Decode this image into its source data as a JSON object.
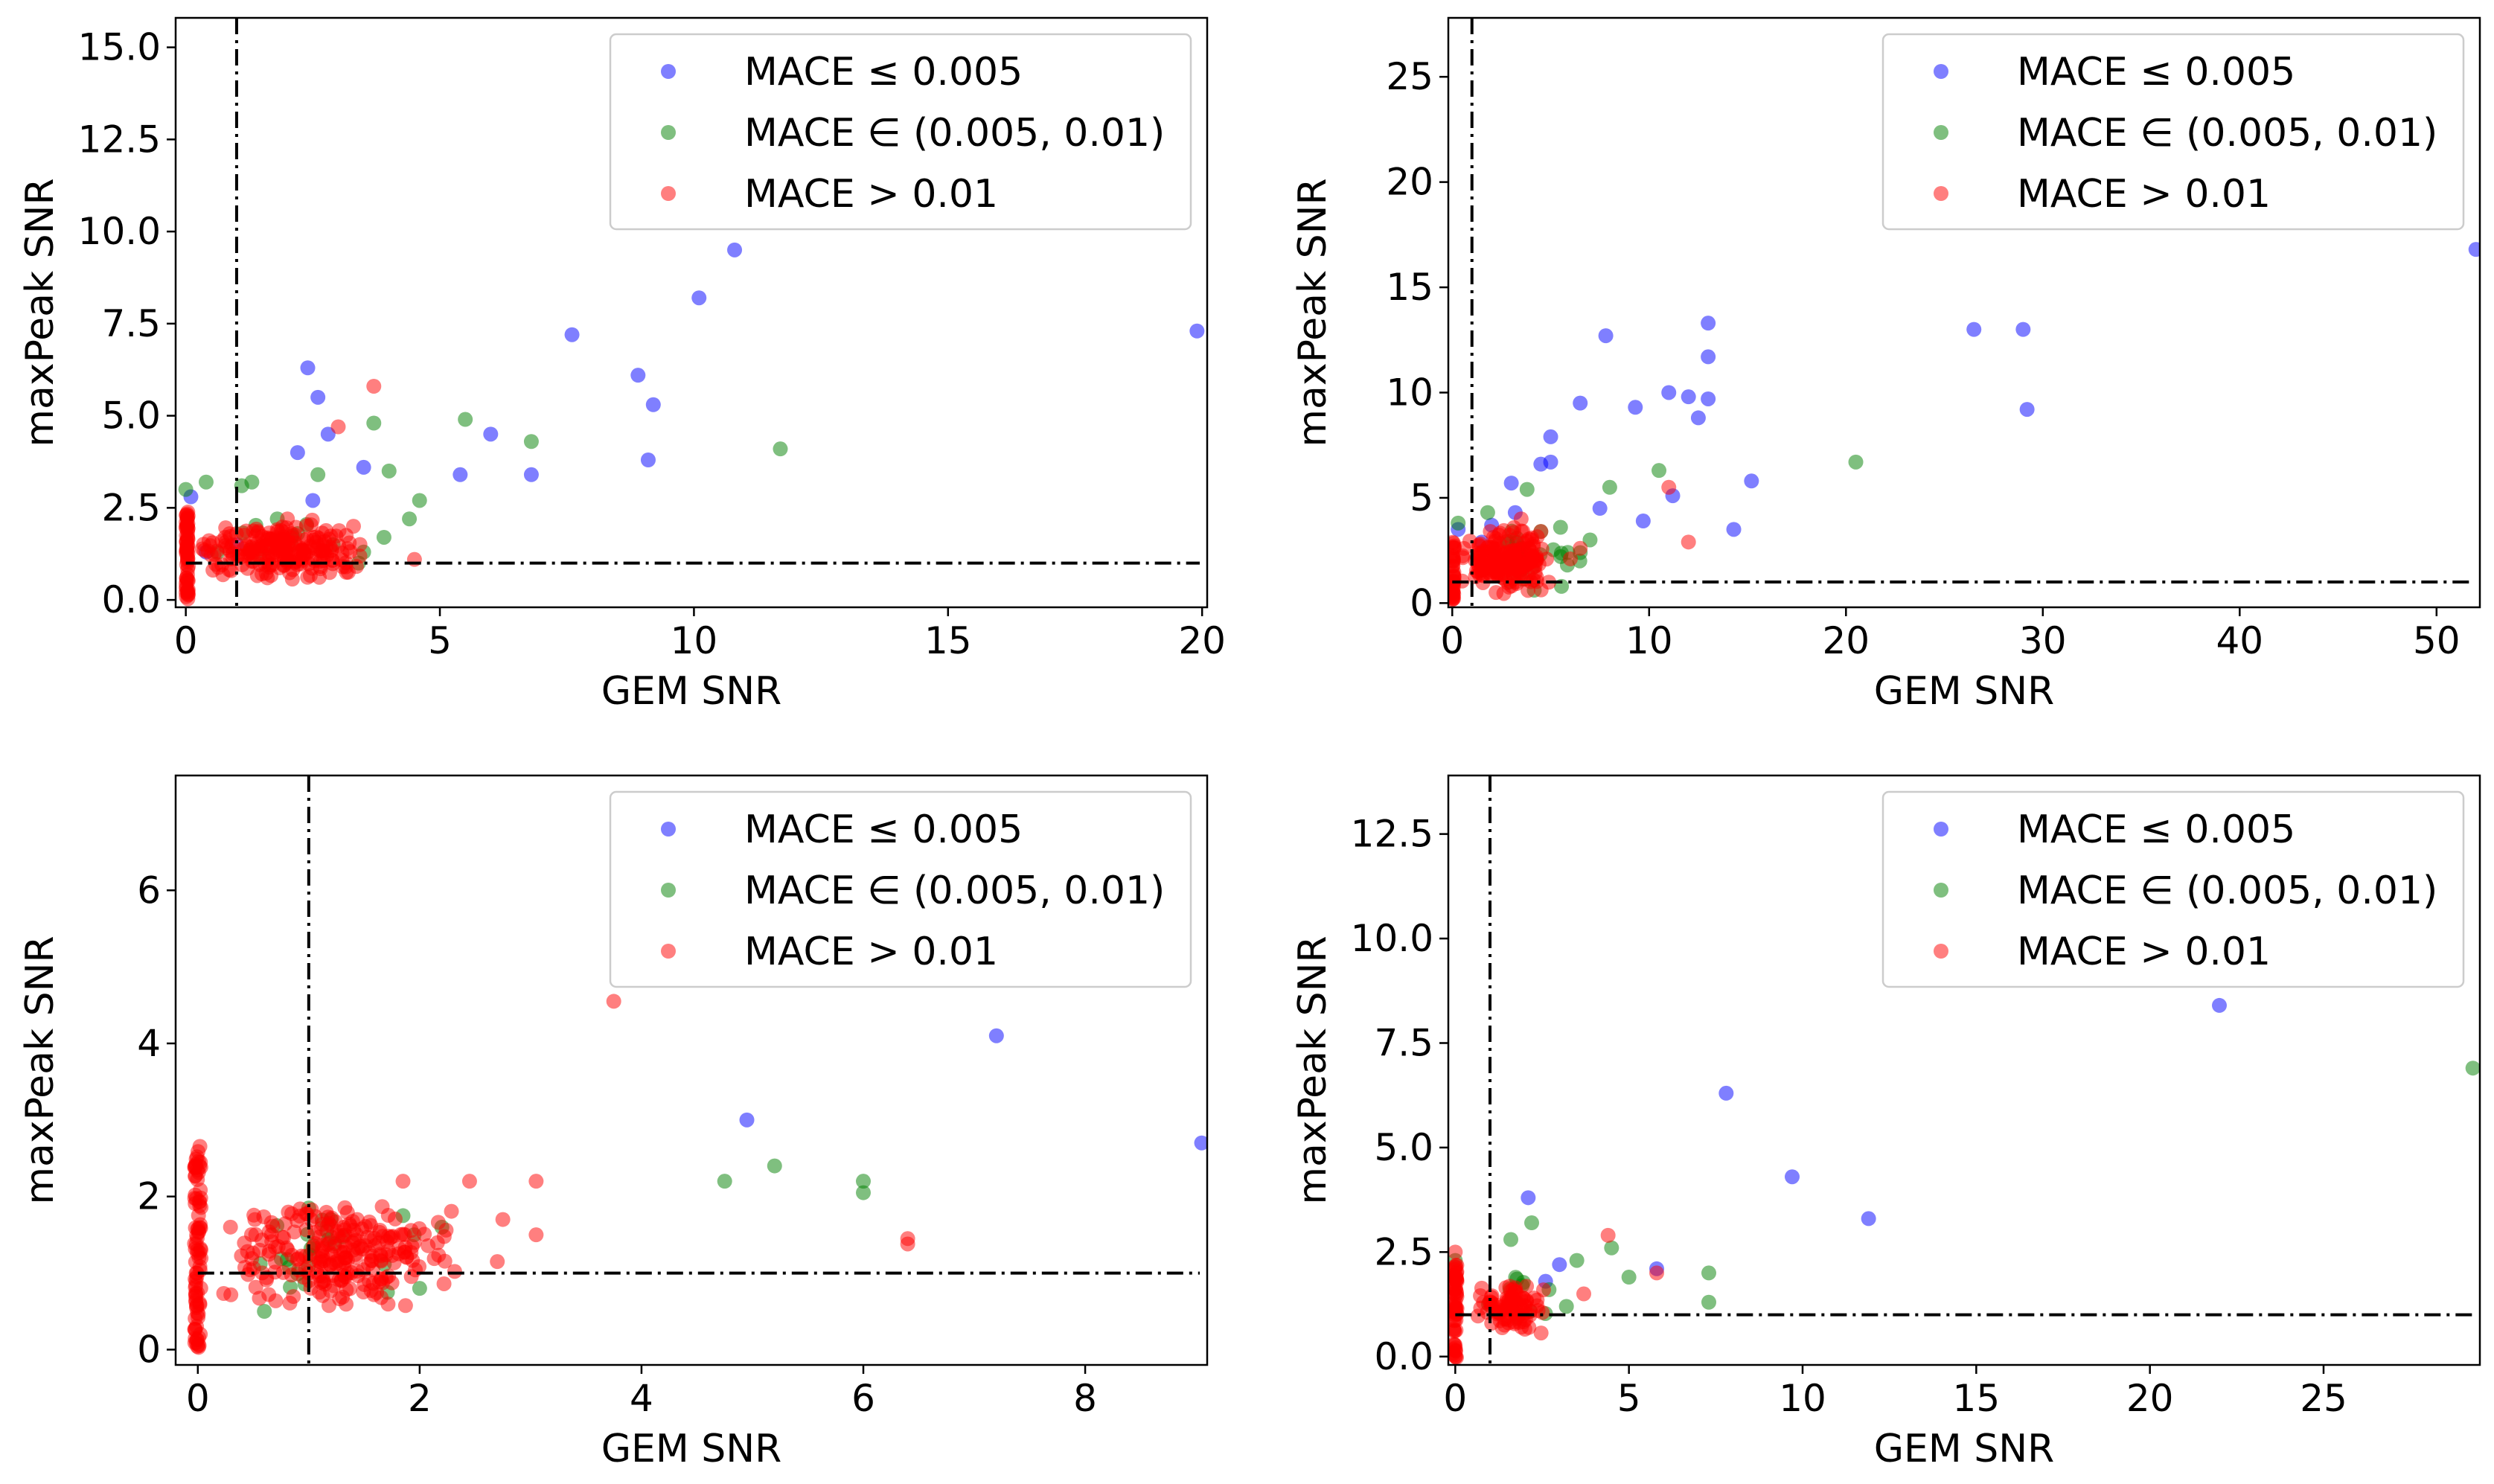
{
  "figure": {
    "legend_entries": [
      {
        "label": "MACE ≤ 0.005",
        "color": "#0000ff"
      },
      {
        "label": "MACE ∈ (0.005, 0.01)",
        "color": "#008000"
      },
      {
        "label": "MACE > 0.01",
        "color": "#ff0000"
      }
    ],
    "legend_placement": "upper right",
    "marker_alpha": 0.5
  },
  "chart_data": [
    {
      "type": "scatter",
      "xlabel": "GEM SNR",
      "ylabel": "maxPeak SNR",
      "xlim": [
        -0.2,
        20.1
      ],
      "ylim": [
        -0.2,
        15.8
      ],
      "xticks": [
        0,
        5,
        10,
        15,
        20
      ],
      "xtick_labels": [
        "0",
        "5",
        "10",
        "15",
        "20"
      ],
      "yticks": [
        0.0,
        2.5,
        5.0,
        7.5,
        10.0,
        12.5,
        15.0
      ],
      "ytick_labels": [
        "0.0",
        "2.5",
        "5.0",
        "7.5",
        "10.0",
        "12.5",
        "15.0"
      ],
      "reference_lines": {
        "x": 1,
        "y": 1
      },
      "grid": false,
      "series": [
        {
          "name": "MACE ≤ 0.005",
          "color": "#0000ff",
          "x": [
            10.8,
            10.1,
            7.6,
            8.9,
            9.1,
            9.2,
            19.9,
            6.0,
            6.8,
            5.4,
            2.4,
            2.6,
            2.2,
            2.8,
            3.5,
            2.5,
            0.1,
            0.4,
            1.0
          ],
          "y": [
            9.5,
            8.2,
            7.2,
            6.1,
            3.8,
            5.3,
            7.3,
            4.5,
            3.4,
            3.4,
            6.3,
            5.5,
            4.0,
            4.5,
            3.6,
            2.7,
            2.8,
            1.3,
            1.5
          ]
        },
        {
          "name": "MACE ∈ (0.005, 0.01)",
          "color": "#008000",
          "x": [
            0.0,
            0.4,
            1.1,
            1.3,
            2.6,
            3.7,
            4.0,
            4.6,
            5.5,
            6.8,
            11.7,
            3.4,
            2.9,
            1.8,
            2.2,
            3.5,
            4.4,
            3.9,
            1.6
          ],
          "y": [
            3.0,
            3.2,
            3.1,
            3.2,
            3.4,
            4.8,
            3.5,
            2.7,
            4.9,
            4.3,
            4.1,
            1.0,
            1.5,
            2.2,
            1.8,
            1.3,
            2.2,
            1.7,
            1.4
          ],
          "jitter_cloud": {
            "count": 8,
            "x": [
              0.5,
              3.0
            ],
            "y": [
              0.8,
              2.2
            ]
          }
        },
        {
          "name": "MACE > 0.01",
          "color": "#ff0000",
          "x": [
            3.7,
            3.0,
            3.3,
            2.0,
            4.5
          ],
          "y": [
            5.8,
            4.7,
            2.0,
            2.2,
            1.1
          ],
          "column_cluster": {
            "count": 60,
            "x": [
              0.0,
              0.05
            ],
            "y": [
              0.0,
              2.4
            ]
          },
          "jitter_cloud": {
            "count": 220,
            "x": [
              0.2,
              3.6
            ],
            "y": [
              0.5,
              2.2
            ]
          }
        }
      ]
    },
    {
      "type": "scatter",
      "xlabel": "GEM SNR",
      "ylabel": "maxPeak SNR",
      "xlim": [
        -0.2,
        52.2
      ],
      "ylim": [
        -0.2,
        27.8
      ],
      "xticks": [
        0,
        10,
        20,
        30,
        40,
        50
      ],
      "xtick_labels": [
        "0",
        "10",
        "20",
        "30",
        "40",
        "50"
      ],
      "yticks": [
        0,
        5,
        10,
        15,
        20,
        25
      ],
      "ytick_labels": [
        "0",
        "5",
        "10",
        "15",
        "20",
        "25"
      ],
      "reference_lines": {
        "x": 1,
        "y": 1
      },
      "grid": false,
      "series": [
        {
          "name": "MACE ≤ 0.005",
          "color": "#0000ff",
          "x": [
            52,
            29,
            26.5,
            29.2,
            13,
            13,
            13,
            12,
            12.5,
            11,
            7.8,
            9.3,
            6.5,
            5,
            4.5,
            3,
            15.2,
            14.3,
            11.2,
            9.7,
            7.5,
            5.0,
            3.2,
            2.0,
            1.5,
            0.3
          ],
          "y": [
            16.8,
            13.0,
            13.0,
            9.2,
            13.3,
            11.7,
            9.7,
            9.8,
            8.8,
            10.0,
            12.7,
            9.3,
            9.5,
            7.9,
            6.6,
            5.7,
            5.8,
            3.5,
            5.1,
            3.9,
            4.5,
            6.7,
            4.3,
            3.7,
            2.9,
            3.5
          ]
        },
        {
          "name": "MACE ∈ (0.005, 0.01)",
          "color": "#008000",
          "x": [
            20.5,
            10.5,
            8,
            7,
            5.5,
            3.8,
            1.8,
            0.3,
            4.5,
            6.5,
            2.8,
            3.5
          ],
          "y": [
            6.7,
            6.3,
            5.5,
            3.0,
            3.6,
            5.4,
            4.3,
            3.8,
            3.4,
            2.4,
            1.8,
            2.6
          ],
          "jitter_cloud": {
            "count": 25,
            "x": [
              0.5,
              7.5
            ],
            "y": [
              0.5,
              4.0
            ]
          }
        },
        {
          "name": "MACE > 0.01",
          "color": "#ff0000",
          "x": [
            12,
            11,
            6.5,
            4.5,
            3.5,
            6.0
          ],
          "y": [
            2.9,
            5.5,
            2.6,
            3.4,
            4.0,
            2.1
          ],
          "column_cluster": {
            "count": 40,
            "x": [
              0.0,
              0.1
            ],
            "y": [
              0.0,
              3.0
            ]
          },
          "jitter_cloud": {
            "count": 180,
            "x": [
              0.3,
              5.0
            ],
            "y": [
              0.2,
              3.8
            ]
          }
        }
      ]
    },
    {
      "type": "scatter",
      "xlabel": "GEM SNR",
      "ylabel": "maxPeak SNR",
      "xlim": [
        -0.2,
        9.1
      ],
      "ylim": [
        -0.2,
        7.5
      ],
      "xticks": [
        0,
        2,
        4,
        6,
        8
      ],
      "xtick_labels": [
        "0",
        "2",
        "4",
        "6",
        "8"
      ],
      "yticks": [
        0,
        2,
        4,
        6
      ],
      "ytick_labels": [
        "0",
        "2",
        "4",
        "6"
      ],
      "reference_lines": {
        "x": 1,
        "y": 1
      },
      "grid": false,
      "series": [
        {
          "name": "MACE ≤ 0.005",
          "color": "#0000ff",
          "x": [
            7.2,
            9.05,
            4.95
          ],
          "y": [
            4.1,
            2.7,
            3.0
          ]
        },
        {
          "name": "MACE ∈ (0.005, 0.01)",
          "color": "#008000",
          "x": [
            4.75,
            5.2,
            6.0,
            6.0,
            1.85,
            1.95,
            2.0,
            2.2,
            1.2,
            1.0,
            0.6
          ],
          "y": [
            2.2,
            2.4,
            2.2,
            2.05,
            1.75,
            1.5,
            0.8,
            1.6,
            1.7,
            1.85,
            0.5
          ],
          "jitter_cloud": {
            "count": 20,
            "x": [
              0.4,
              1.8
            ],
            "y": [
              0.6,
              1.8
            ]
          }
        },
        {
          "name": "MACE > 0.01",
          "color": "#ff0000",
          "x": [
            3.75,
            6.4,
            6.4,
            3.05,
            3.05,
            2.45,
            2.75,
            2.7,
            1.85,
            1.5
          ],
          "y": [
            4.55,
            1.45,
            1.38,
            2.2,
            1.5,
            2.2,
            1.7,
            1.15,
            2.2,
            0.85
          ],
          "column_cluster": {
            "count": 90,
            "x": [
              -0.03,
              0.03
            ],
            "y": [
              0.0,
              2.7
            ]
          },
          "jitter_cloud": {
            "count": 250,
            "x": [
              0.2,
              2.4
            ],
            "y": [
              0.5,
              2.0
            ]
          }
        }
      ]
    },
    {
      "type": "scatter",
      "xlabel": "GEM SNR",
      "ylabel": "maxPeak SNR",
      "xlim": [
        -0.2,
        29.5
      ],
      "ylim": [
        -0.2,
        13.9
      ],
      "xticks": [
        0,
        5,
        10,
        15,
        20,
        25
      ],
      "xtick_labels": [
        "0",
        "5",
        "10",
        "15",
        "20",
        "25"
      ],
      "yticks": [
        0.0,
        2.5,
        5.0,
        7.5,
        10.0,
        12.5
      ],
      "ytick_labels": [
        "0.0",
        "2.5",
        "5.0",
        "7.5",
        "10.0",
        "12.5"
      ],
      "reference_lines": {
        "x": 1,
        "y": 1
      },
      "grid": false,
      "series": [
        {
          "name": "MACE ≤ 0.005",
          "color": "#0000ff",
          "x": [
            22,
            7.8,
            9.7,
            11.9,
            2.1,
            5.8,
            3.0,
            2.6
          ],
          "y": [
            8.4,
            6.3,
            4.3,
            3.3,
            3.8,
            2.1,
            2.2,
            1.8
          ]
        },
        {
          "name": "MACE ∈ (0.005, 0.01)",
          "color": "#008000",
          "x": [
            29.3,
            7.3,
            7.3,
            5.0,
            4.5,
            3.5,
            2.2,
            1.6,
            2.7,
            3.2,
            0.0
          ],
          "y": [
            6.9,
            2.0,
            1.3,
            1.9,
            2.6,
            2.3,
            3.2,
            2.8,
            1.6,
            1.2,
            2.3
          ],
          "jitter_cloud": {
            "count": 12,
            "x": [
              0.8,
              2.8
            ],
            "y": [
              0.7,
              1.9
            ]
          }
        },
        {
          "name": "MACE > 0.01",
          "color": "#ff0000",
          "x": [
            4.4,
            5.8,
            3.7,
            0.0
          ],
          "y": [
            2.9,
            2.0,
            1.5,
            2.5
          ],
          "column_cluster": {
            "count": 60,
            "x": [
              -0.05,
              0.05
            ],
            "y": [
              -0.1,
              2.2
            ]
          },
          "jitter_cloud": {
            "count": 90,
            "x": [
              0.5,
              2.6
            ],
            "y": [
              0.5,
              1.8
            ]
          }
        }
      ]
    }
  ]
}
